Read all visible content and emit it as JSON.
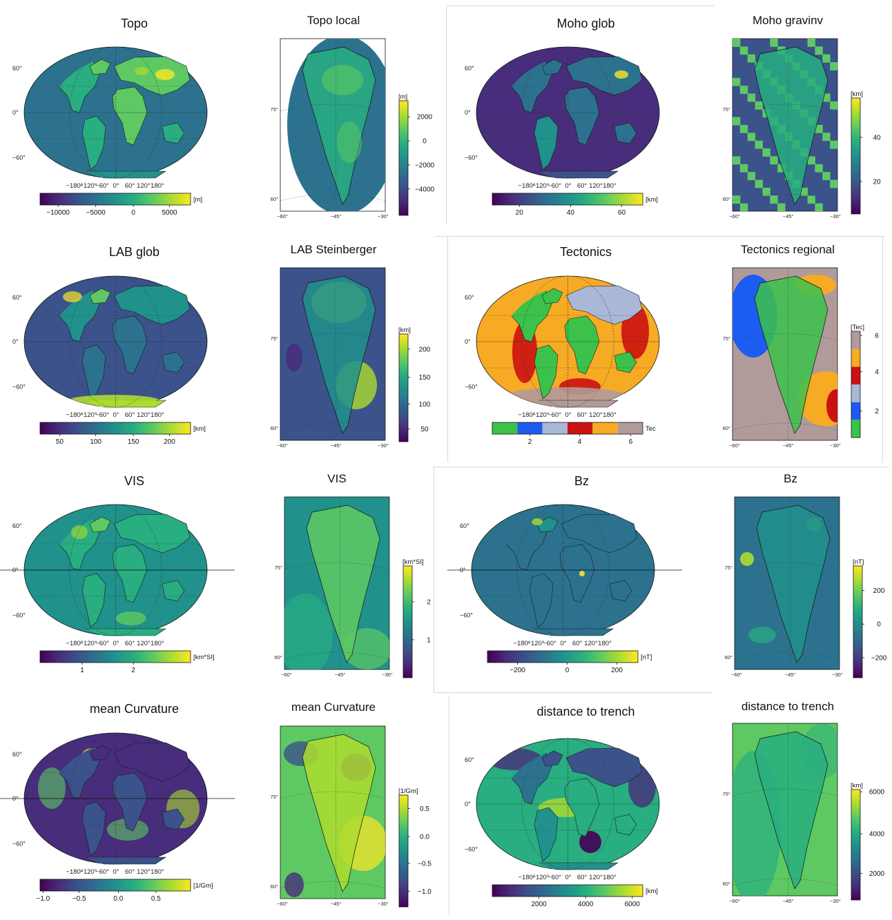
{
  "colors": {
    "viridis": [
      "#440154",
      "#472d7b",
      "#3b528b",
      "#2c728e",
      "#21918c",
      "#28ae80",
      "#5ec962",
      "#addc30",
      "#fde725"
    ],
    "tectonics": [
      "#3cc24a",
      "#1d5cf0",
      "#a9b8d6",
      "#cc1111",
      "#f7aa24",
      "#b19a9a"
    ]
  },
  "lon_ticks": [
    "−180°",
    "−120°",
    "−60°",
    "0°",
    "60°",
    "120°",
    "180°"
  ],
  "lat_labels": {
    "n60": "60°",
    "eq": "0°",
    "s60": "−60°"
  },
  "greenland_lat_labels": [
    "60°",
    "75°"
  ],
  "greenland_lon_labels": [
    "−60°",
    "−45°",
    "−30°"
  ],
  "panels": [
    {
      "title": "Topo",
      "colorbar": {
        "ticks": [
          "−10000",
          "−5000",
          "0",
          "5000"
        ],
        "unit": "[m]"
      }
    },
    {
      "title": "Topo local",
      "colorbar": {
        "ticks": [
          "2000",
          "0",
          "−2000",
          "−4000"
        ],
        "unit": "[m]"
      }
    },
    {
      "title": "Moho glob",
      "colorbar": {
        "ticks": [
          "20",
          "40",
          "60"
        ],
        "unit": "[km]"
      }
    },
    {
      "title": "Moho gravinv",
      "colorbar": {
        "ticks": [
          "40",
          "20"
        ],
        "unit": "[km]"
      }
    },
    {
      "title": "LAB glob",
      "colorbar": {
        "ticks": [
          "50",
          "100",
          "150",
          "200"
        ],
        "unit": "[km]"
      }
    },
    {
      "title": "LAB Steinberger",
      "colorbar": {
        "ticks": [
          "200",
          "150",
          "100",
          "50"
        ],
        "unit": "[km]"
      }
    },
    {
      "title": "Tectonics",
      "colorbar": {
        "ticks": [
          "2",
          "4",
          "6"
        ],
        "unit": "Tec"
      }
    },
    {
      "title": "Tectonics regional",
      "colorbar": {
        "ticks": [
          "6",
          "4",
          "2"
        ],
        "unit": "[Tec]"
      }
    },
    {
      "title": "VIS",
      "colorbar": {
        "ticks": [
          "1",
          "2"
        ],
        "unit": "[km*SI]"
      }
    },
    {
      "title": "VIS",
      "colorbar": {
        "ticks": [
          "2",
          "1"
        ],
        "unit": "[km*SI]"
      }
    },
    {
      "title": "Bz",
      "colorbar": {
        "ticks": [
          "−200",
          "0",
          "200"
        ],
        "unit": "[nT]"
      }
    },
    {
      "title": "Bz",
      "colorbar": {
        "ticks": [
          "200",
          "0",
          "−200"
        ],
        "unit": "[nT]"
      }
    },
    {
      "title": "mean Curvature",
      "colorbar": {
        "ticks": [
          "−1.0",
          "−0.5",
          "0.0",
          "0.5"
        ],
        "unit": "[1/Gm]"
      }
    },
    {
      "title": "mean Curvature",
      "colorbar": {
        "ticks": [
          "0.5",
          "0.0",
          "−0.5",
          "−1.0"
        ],
        "unit": "[1/Gm]"
      }
    },
    {
      "title": "distance to trench",
      "colorbar": {
        "ticks": [
          "2000",
          "4000",
          "6000"
        ],
        "unit": "[km]"
      }
    },
    {
      "title": "distance to trench",
      "colorbar": {
        "ticks": [
          "6000",
          "4000",
          "2000"
        ],
        "unit": "[km]"
      }
    }
  ]
}
